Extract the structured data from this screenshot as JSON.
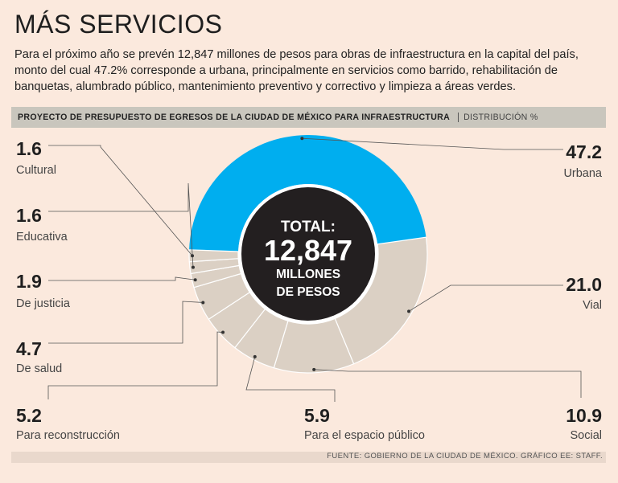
{
  "header": {
    "title": "MÁS SERVICIOS",
    "intro": "Para el próximo año se prevén 12,847 millones de pesos para obras de infraestructura en la capital del país, monto del cual 47.2% corresponde a urbana, principalmente en servicios como barrido, rehabilitación de banquetas, alumbrado público, mantenimiento preventivo y correctivo y limpieza a áreas verdes."
  },
  "bar": {
    "project": "PROYECTO DE PRESUPUESTO DE EGRESOS DE LA CIUDAD DE MÉXICO PARA INFRAESTRUCTURA",
    "distribution": "DISTRIBUCIÓN %"
  },
  "footer": {
    "source": "FUENTE: GOBIERNO DE LA CIUDAD DE MÉXICO. GRÁFICO EE: STAFF."
  },
  "colors": {
    "background": "#fbe9dd",
    "highlight": "#00aeef",
    "segment": "#dbd0c4",
    "center": "#231f20"
  },
  "chart_data": {
    "type": "pie",
    "title": "PROYECTO DE PRESUPUESTO DE EGRESOS DE LA CIUDAD DE MÉXICO PARA INFRAESTRUCTURA",
    "subtitle": "DISTRIBUCIÓN %",
    "center": {
      "line1": "TOTAL:",
      "value": "12,847",
      "line3": "MILLONES",
      "line4": "DE PESOS"
    },
    "slices": [
      {
        "label": "Urbana",
        "value": 47.2,
        "value_text": "47.2",
        "highlight": true
      },
      {
        "label": "Vial",
        "value": 21.0,
        "value_text": "21.0"
      },
      {
        "label": "Social",
        "value": 10.9,
        "value_text": "10.9"
      },
      {
        "label": "Para el espacio público",
        "value": 5.9,
        "value_text": "5.9"
      },
      {
        "label": "Para reconstrucción",
        "value": 5.2,
        "value_text": "5.2"
      },
      {
        "label": "De salud",
        "value": 4.7,
        "value_text": "4.7"
      },
      {
        "label": "De justicia",
        "value": 1.9,
        "value_text": "1.9"
      },
      {
        "label": "Educativa",
        "value": 1.6,
        "value_text": "1.6"
      },
      {
        "label": "Cultural",
        "value": 1.6,
        "value_text": "1.6"
      }
    ]
  }
}
